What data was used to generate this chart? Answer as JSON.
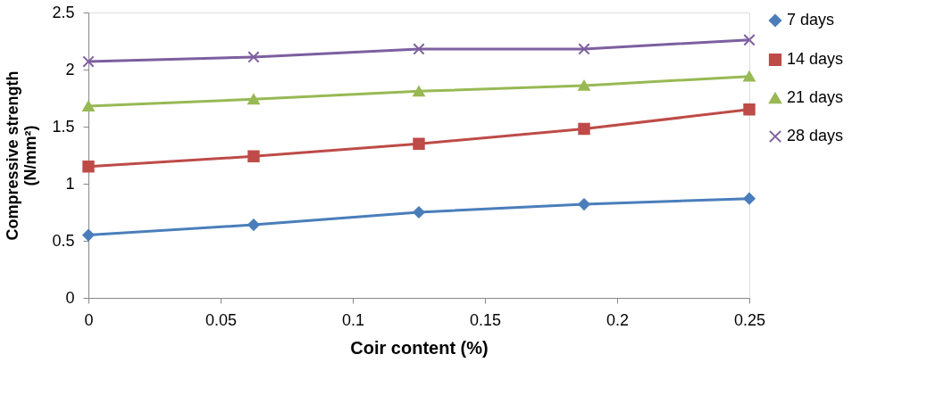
{
  "chart_data": {
    "type": "line",
    "xlabel": "Coir content (%)",
    "ylabel": "Compressive strength\n(N/mm²)",
    "x": [
      0,
      0.0625,
      0.125,
      0.1875,
      0.25
    ],
    "series": [
      {
        "name": "7 days",
        "color": "#4a7ebb",
        "marker": "diamond",
        "values": [
          0.55,
          0.64,
          0.75,
          0.82,
          0.87
        ]
      },
      {
        "name": "14 days",
        "color": "#be4b48",
        "marker": "square",
        "values": [
          1.15,
          1.24,
          1.35,
          1.48,
          1.65
        ]
      },
      {
        "name": "21 days",
        "color": "#98b954",
        "marker": "triangle",
        "values": [
          1.68,
          1.74,
          1.81,
          1.86,
          1.94
        ]
      },
      {
        "name": "28 days",
        "color": "#7d5fa0",
        "marker": "cross",
        "values": [
          2.07,
          2.11,
          2.18,
          2.18,
          2.26
        ]
      }
    ],
    "xlim": [
      0,
      0.25
    ],
    "xticks": [
      0,
      0.05,
      0.1,
      0.15,
      0.2,
      0.25
    ],
    "ylim": [
      0,
      2.5
    ],
    "yticks": [
      0,
      0.5,
      1,
      1.5,
      2,
      2.5
    ],
    "grid": false,
    "legend": "right",
    "line_style": "solid"
  }
}
